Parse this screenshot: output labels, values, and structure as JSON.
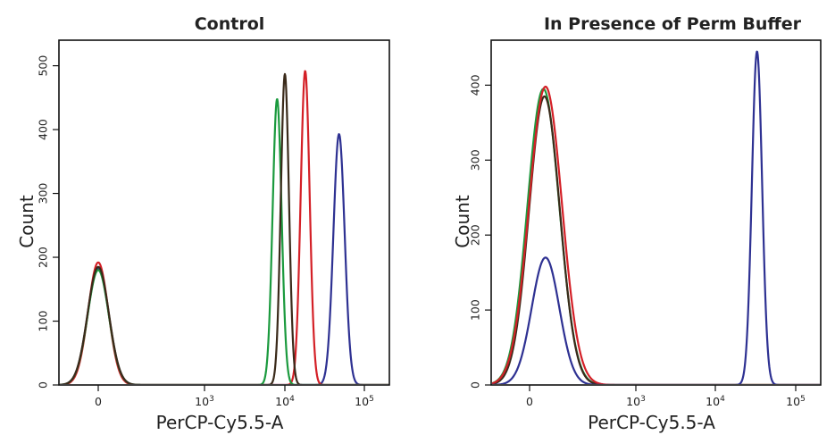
{
  "chart_data": [
    {
      "type": "line",
      "title": "Control",
      "xlabel": "PerCP-Cy5.5-A",
      "ylabel": "Count",
      "x_scale": "biexponential",
      "xlim": [
        -600,
        250000
      ],
      "ylim": [
        0,
        540
      ],
      "x_ticks": [
        {
          "value": 0,
          "label": "0"
        },
        {
          "value": 1000,
          "label": "10",
          "sup": "3"
        },
        {
          "value": 10000,
          "label": "10",
          "sup": "4"
        },
        {
          "value": 100000,
          "label": "10",
          "sup": "5"
        }
      ],
      "y_ticks": [
        {
          "value": 0,
          "label": "0"
        },
        {
          "value": 100,
          "label": "100"
        },
        {
          "value": 200,
          "label": "200"
        },
        {
          "value": 300,
          "label": "300"
        },
        {
          "value": 400,
          "label": "400"
        },
        {
          "value": 500,
          "label": "500"
        }
      ],
      "grid": false,
      "legend": "none",
      "series": [
        {
          "color": "#2e3192",
          "peaks": [
            {
              "center": 0,
              "height": 182,
              "width": 100
            },
            {
              "center": 48000,
              "height": 393,
              "width": 8500
            }
          ]
        },
        {
          "color": "#d42027",
          "peaks": [
            {
              "center": 0,
              "height": 192,
              "width": 95
            },
            {
              "center": 18000,
              "height": 492,
              "width": 2500
            }
          ]
        },
        {
          "color": "#1b9a3e",
          "peaks": [
            {
              "center": 0,
              "height": 180,
              "width": 100
            },
            {
              "center": 8000,
              "height": 448,
              "width": 1100
            }
          ]
        },
        {
          "color": "#3a2a1a",
          "peaks": [
            {
              "center": 0,
              "height": 185,
              "width": 100
            },
            {
              "center": 10000,
              "height": 487,
              "width": 1250
            }
          ]
        }
      ]
    },
    {
      "type": "line",
      "title": "In Presence of Perm Buffer",
      "xlabel": "PerCP-Cy5.5-A",
      "ylabel": "Count",
      "x_scale": "biexponential",
      "xlim": [
        -600,
        250000
      ],
      "ylim": [
        0,
        460
      ],
      "x_ticks": [
        {
          "value": 0,
          "label": "0"
        },
        {
          "value": 1000,
          "label": "10",
          "sup": "3"
        },
        {
          "value": 10000,
          "label": "10",
          "sup": "4"
        },
        {
          "value": 100000,
          "label": "10",
          "sup": "5"
        }
      ],
      "y_ticks": [
        {
          "value": 0,
          "label": "0"
        },
        {
          "value": 100,
          "label": "100"
        },
        {
          "value": 200,
          "label": "200"
        },
        {
          "value": 300,
          "label": "300"
        },
        {
          "value": 400,
          "label": "400"
        }
      ],
      "grid": false,
      "legend": "none",
      "series": [
        {
          "color": "#1b9a3e",
          "peaks": [
            {
              "center": 130,
              "height": 395,
              "width": 150
            }
          ]
        },
        {
          "color": "#3a2a1a",
          "peaks": [
            {
              "center": 140,
              "height": 385,
              "width": 145
            }
          ]
        },
        {
          "color": "#d42027",
          "peaks": [
            {
              "center": 150,
              "height": 398,
              "width": 155
            }
          ]
        },
        {
          "color": "#2e3192",
          "peaks": [
            {
              "center": 150,
              "height": 170,
              "width": 130
            },
            {
              "center": 33000,
              "height": 445,
              "width": 5200
            }
          ]
        }
      ]
    }
  ]
}
